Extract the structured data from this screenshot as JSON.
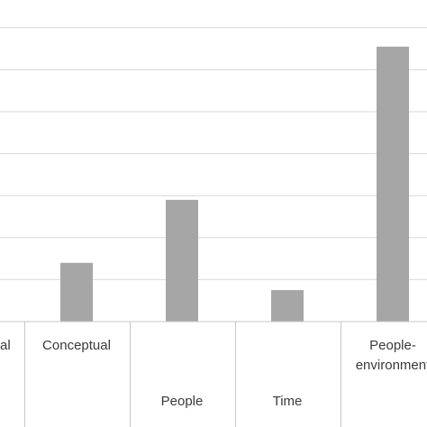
{
  "chart_data": {
    "type": "bar",
    "categories": [
      "…al",
      "Conceptual",
      "People",
      "Time",
      "People-environment"
    ],
    "category_label_lines": [
      [
        "al"
      ],
      [
        "Conceptual"
      ],
      [
        "People"
      ],
      [
        "Time"
      ],
      [
        "People-",
        "environment"
      ]
    ],
    "values": [
      0,
      2.8,
      5.8,
      1.5,
      13.1
    ],
    "ylim": [
      0,
      15
    ],
    "gridlines_y": [
      0,
      2,
      4,
      6,
      8,
      10,
      12,
      14
    ],
    "bar_color": "#a6a6a6",
    "grid": true
  }
}
